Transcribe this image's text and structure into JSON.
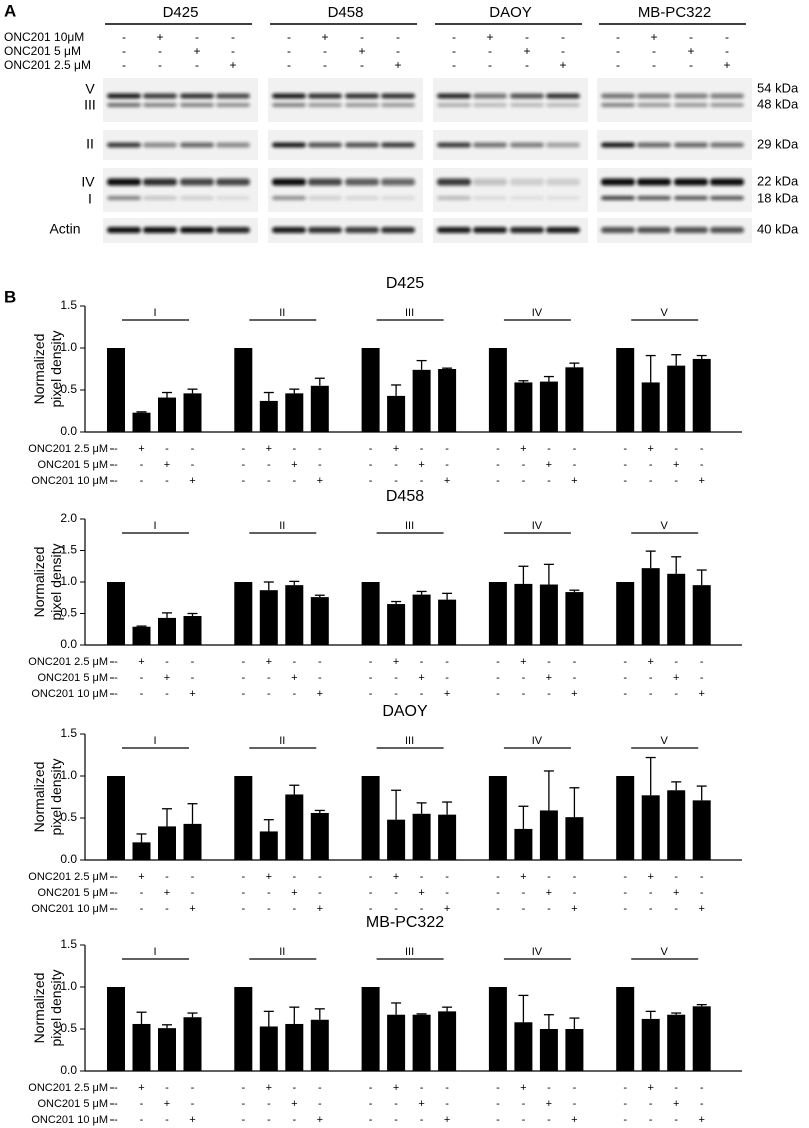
{
  "blot": {
    "panel": "A",
    "cell_lines": [
      "D425",
      "D458",
      "DAOY",
      "MB-PC322"
    ],
    "treatments": [
      {
        "name": "ONC201   10μM",
        "signs": [
          "-",
          "+",
          "-",
          "-"
        ]
      },
      {
        "name": "ONC201    5 μM",
        "signs": [
          "-",
          "-",
          "+",
          "-"
        ]
      },
      {
        "name": "ONC201 2.5 μM",
        "signs": [
          "-",
          "-",
          "-",
          "+"
        ]
      }
    ],
    "bands": [
      {
        "label": "V",
        "size": "54 kDa"
      },
      {
        "label": "III",
        "size": "48 kDa"
      },
      {
        "label": "II",
        "size": "29 kDa"
      },
      {
        "label": "IV",
        "size": "22 kDa"
      },
      {
        "label": "I",
        "size": "18 kDa"
      },
      {
        "label": "Actin",
        "size": "40 kDa"
      }
    ]
  },
  "panel_b": "B",
  "chart_data": [
    {
      "type": "bar",
      "title": "D425",
      "ylabel": [
        "Normalized",
        "pixel density"
      ],
      "color": "#000000",
      "ylim": [
        0,
        1.5
      ],
      "yticks": [
        {
          "value": 0,
          "label": "0.0"
        },
        0.5,
        {
          "value": 1,
          "label": "1.0"
        },
        1.5
      ],
      "conditions": [
        {
          "name": "ONC201 2.5 μM",
          "signs": [
            "-",
            "+",
            "-",
            "-"
          ]
        },
        {
          "name": "ONC201 5 μM",
          "signs": [
            "-",
            "-",
            "+",
            "-"
          ]
        },
        {
          "name": "ONC201 10 μM",
          "signs": [
            "-",
            "-",
            "-",
            "+"
          ]
        }
      ],
      "groups": [
        {
          "label": "I",
          "values": [
            1.0,
            0.23,
            0.41,
            0.46
          ],
          "errors": [
            null,
            0.01,
            0.06,
            0.05
          ]
        },
        {
          "label": "II",
          "values": [
            1.0,
            0.37,
            0.46,
            0.55
          ],
          "errors": [
            null,
            0.1,
            0.05,
            0.09
          ]
        },
        {
          "label": "III",
          "values": [
            1.0,
            0.43,
            0.74,
            0.75
          ],
          "errors": [
            null,
            0.13,
            0.11,
            0.01
          ]
        },
        {
          "label": "IV",
          "values": [
            1.0,
            0.59,
            0.6,
            0.77
          ],
          "errors": [
            null,
            0.02,
            0.06,
            0.05
          ]
        },
        {
          "label": "V",
          "values": [
            1.0,
            0.59,
            0.79,
            0.87
          ],
          "errors": [
            null,
            0.32,
            0.13,
            0.04
          ]
        }
      ]
    },
    {
      "type": "bar",
      "title": "D458",
      "ylabel": [
        "Normalized",
        "pixel density"
      ],
      "color": "#000000",
      "ylim": [
        0,
        2
      ],
      "yticks": [
        {
          "value": 0,
          "label": "0.0"
        },
        0.5,
        {
          "value": 1,
          "label": "1.0"
        },
        1.5,
        {
          "value": 2,
          "label": "2.0"
        }
      ],
      "conditions": [
        {
          "name": "ONC201 2.5 μM",
          "signs": [
            "-",
            "+",
            "-",
            "-"
          ]
        },
        {
          "name": "ONC201 5 μM",
          "signs": [
            "-",
            "-",
            "+",
            "-"
          ]
        },
        {
          "name": "ONC201 10 μM",
          "signs": [
            "-",
            "-",
            "-",
            "+"
          ]
        }
      ],
      "groups": [
        {
          "label": "I",
          "values": [
            1.0,
            0.29,
            0.43,
            0.46
          ],
          "errors": [
            null,
            0.01,
            0.08,
            0.04
          ]
        },
        {
          "label": "II",
          "values": [
            1.0,
            0.87,
            0.95,
            0.76
          ],
          "errors": [
            null,
            0.13,
            0.06,
            0.03
          ]
        },
        {
          "label": "III",
          "values": [
            1.0,
            0.65,
            0.8,
            0.72
          ],
          "errors": [
            null,
            0.04,
            0.05,
            0.1
          ]
        },
        {
          "label": "IV",
          "values": [
            1.0,
            0.97,
            0.96,
            0.84
          ],
          "errors": [
            null,
            0.28,
            0.32,
            0.03
          ]
        },
        {
          "label": "V",
          "values": [
            1.0,
            1.22,
            1.13,
            0.95
          ],
          "errors": [
            null,
            0.27,
            0.27,
            0.24
          ]
        }
      ]
    },
    {
      "type": "bar",
      "title": "DAOY",
      "ylabel": [
        "Normalized",
        "pixel density"
      ],
      "color": "#000000",
      "ylim": [
        0,
        1.5
      ],
      "yticks": [
        {
          "value": 0,
          "label": "0.0"
        },
        0.5,
        {
          "value": 1,
          "label": "1.0"
        },
        1.5
      ],
      "conditions": [
        {
          "name": "ONC201 2.5 μM",
          "signs": [
            "-",
            "+",
            "-",
            "-"
          ]
        },
        {
          "name": "ONC201 5 μM",
          "signs": [
            "-",
            "-",
            "+",
            "-"
          ]
        },
        {
          "name": "ONC201 10 μM",
          "signs": [
            "-",
            "-",
            "-",
            "+"
          ]
        }
      ],
      "groups": [
        {
          "label": "I",
          "values": [
            1.0,
            0.21,
            0.4,
            0.43
          ],
          "errors": [
            null,
            0.1,
            0.21,
            0.24
          ]
        },
        {
          "label": "II",
          "values": [
            1.0,
            0.34,
            0.78,
            0.56
          ],
          "errors": [
            null,
            0.14,
            0.11,
            0.03
          ]
        },
        {
          "label": "III",
          "values": [
            1.0,
            0.48,
            0.55,
            0.54
          ],
          "errors": [
            null,
            0.35,
            0.13,
            0.15
          ]
        },
        {
          "label": "IV",
          "values": [
            1.0,
            0.37,
            0.59,
            0.51
          ],
          "errors": [
            null,
            0.27,
            0.47,
            0.35
          ]
        },
        {
          "label": "V",
          "values": [
            1.0,
            0.77,
            0.83,
            0.71
          ],
          "errors": [
            null,
            0.45,
            0.1,
            0.17
          ]
        }
      ]
    },
    {
      "type": "bar",
      "title": "MB-PC322",
      "ylabel": [
        "Normalized",
        "pixel density"
      ],
      "color": "#000000",
      "ylim": [
        0,
        1.5
      ],
      "yticks": [
        {
          "value": 0,
          "label": "0.0"
        },
        0.5,
        {
          "value": 1,
          "label": "1.0"
        },
        1.5
      ],
      "conditions": [
        {
          "name": "ONC201 2.5 μM",
          "signs": [
            "-",
            "+",
            "-",
            "-"
          ]
        },
        {
          "name": "ONC201 5 μM",
          "signs": [
            "-",
            "-",
            "+",
            "-"
          ]
        },
        {
          "name": "ONC201 10 μM",
          "signs": [
            "-",
            "-",
            "-",
            "+"
          ]
        }
      ],
      "groups": [
        {
          "label": "I",
          "values": [
            1.0,
            0.56,
            0.51,
            0.64
          ],
          "errors": [
            null,
            0.14,
            0.04,
            0.05
          ]
        },
        {
          "label": "II",
          "values": [
            1.0,
            0.53,
            0.56,
            0.61
          ],
          "errors": [
            null,
            0.18,
            0.2,
            0.13
          ]
        },
        {
          "label": "III",
          "values": [
            1.0,
            0.67,
            0.67,
            0.71
          ],
          "errors": [
            null,
            0.14,
            0.01,
            0.05
          ]
        },
        {
          "label": "IV",
          "values": [
            1.0,
            0.58,
            0.5,
            0.5
          ],
          "errors": [
            null,
            0.32,
            0.17,
            0.13
          ]
        },
        {
          "label": "V",
          "values": [
            1.0,
            0.62,
            0.67,
            0.77
          ],
          "errors": [
            null,
            0.09,
            0.02,
            0.02
          ]
        }
      ]
    }
  ]
}
